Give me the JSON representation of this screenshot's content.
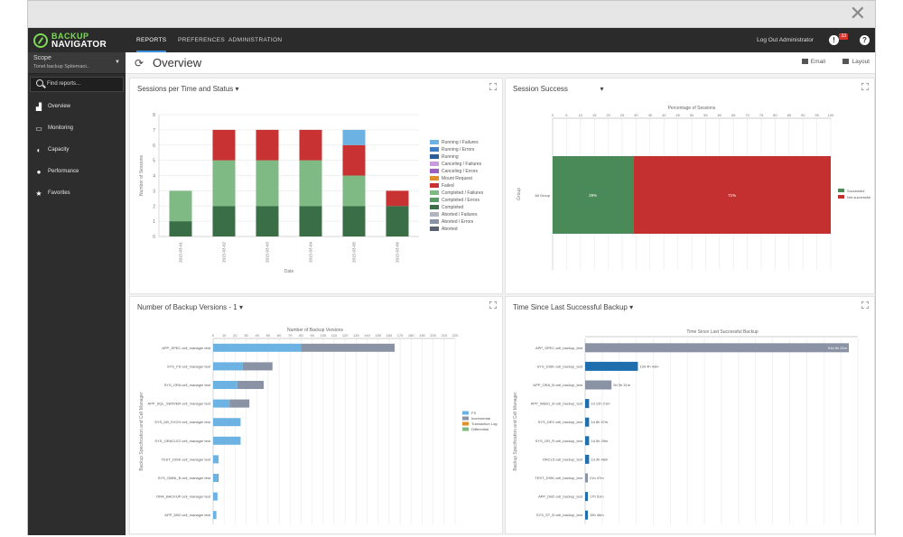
{
  "window": {
    "close_glyph": "✕"
  },
  "brand": {
    "line1": "BACKUP",
    "line2": "NAVIGATOR"
  },
  "nav": {
    "tabs": [
      {
        "label": "REPORTS",
        "active": true
      },
      {
        "label": "PREFERENCES",
        "active": false
      },
      {
        "label": "ADMINISTRATION",
        "active": false
      }
    ],
    "logout": "Log Out Administrator",
    "alert_badge": "33",
    "alert_glyph": "!",
    "help_glyph": "?"
  },
  "sidebar": {
    "scope_title": "Scope",
    "scope_value": "Tonet backup Spitemaoi..",
    "find_reports": "Find reports...",
    "items": [
      {
        "label": "Overview",
        "icon": "bar-chart-icon",
        "glyph": "▟"
      },
      {
        "label": "Monitoring",
        "icon": "monitor-icon",
        "glyph": "▭"
      },
      {
        "label": "Capacity",
        "icon": "pie-icon",
        "glyph": "◐"
      },
      {
        "label": "Performance",
        "icon": "info-icon",
        "glyph": "●"
      },
      {
        "label": "Favorites",
        "icon": "star-icon",
        "glyph": "★"
      }
    ]
  },
  "header": {
    "title": "Overview",
    "refresh_glyph": "⟳",
    "email": "Email",
    "layout": "Layout"
  },
  "colors": {
    "dark_green": "#3a6e46",
    "light_green": "#7fba85",
    "red": "#c83232",
    "light_blue": "#6cb3e3",
    "grey_bar": "#8a93a3",
    "blue_dark": "#1f6fae",
    "session_green": "#4a8a58",
    "session_red": "#c43030"
  },
  "chart_data": [
    {
      "type": "bar",
      "title": "Sessions per Time and Status",
      "xlabel": "Date",
      "ylabel": "Number of Sessions",
      "ylim": [
        0,
        8
      ],
      "yticks": [
        0,
        1,
        2,
        3,
        4,
        5,
        6,
        7,
        8
      ],
      "categories": [
        "2015-03-01",
        "2015-03-02",
        "2015-03-03",
        "2015-03-04",
        "2015-03-05",
        "2015-03-06"
      ],
      "series": [
        {
          "name": "Completed",
          "color": "#3a6e46",
          "values": [
            1,
            2,
            2,
            2,
            2,
            2
          ]
        },
        {
          "name": "Completed / Failures",
          "color": "#7fba85",
          "values": [
            2,
            3,
            3,
            3,
            2,
            0
          ]
        },
        {
          "name": "Failed",
          "color": "#c83232",
          "values": [
            0,
            2,
            2,
            2,
            2,
            1
          ]
        },
        {
          "name": "Running / Failures",
          "color": "#6cb3e3",
          "values": [
            0,
            0,
            0,
            0,
            1,
            0
          ]
        }
      ],
      "legend": [
        {
          "name": "Running / Failures",
          "color": "#6cb3e3"
        },
        {
          "name": "Running / Errors",
          "color": "#3d7fc2"
        },
        {
          "name": "Running",
          "color": "#2a5d9a"
        },
        {
          "name": "Canceling / Failures",
          "color": "#c89be0"
        },
        {
          "name": "Canceling / Errors",
          "color": "#9a5fc0"
        },
        {
          "name": "Mount Request",
          "color": "#e0902a"
        },
        {
          "name": "Failed",
          "color": "#c83232"
        },
        {
          "name": "Completed / Failures",
          "color": "#7fba85"
        },
        {
          "name": "Completed / Errors",
          "color": "#5a9a66"
        },
        {
          "name": "Completed",
          "color": "#3a6e46"
        },
        {
          "name": "Aborted / Failures",
          "color": "#b0b6c0"
        },
        {
          "name": "Aborted / Errors",
          "color": "#8a93a3"
        },
        {
          "name": "Aborted",
          "color": "#5c6370"
        }
      ],
      "legend_position": "right",
      "grid": true
    },
    {
      "type": "bar",
      "orientation": "horizontal-stacked",
      "title": "Session Success",
      "xlabel": "Percentage of Sessions",
      "ylabel": "Group",
      "xlim": [
        0,
        100
      ],
      "xticks": [
        0,
        5,
        10,
        15,
        20,
        25,
        30,
        35,
        40,
        45,
        50,
        55,
        60,
        65,
        70,
        75,
        80,
        85,
        90,
        95,
        100
      ],
      "categories": [
        "All Group"
      ],
      "series": [
        {
          "name": "Successful",
          "color": "#4a8a58",
          "values": [
            29
          ],
          "label": "29%"
        },
        {
          "name": "Not successful",
          "color": "#c43030",
          "values": [
            71
          ],
          "label": "71%"
        }
      ],
      "legend_position": "right",
      "grid": true
    },
    {
      "type": "bar",
      "orientation": "horizontal-stacked",
      "title": "Number of Backup Versions - 1",
      "xlabel": "Number of Backup Versions",
      "ylabel": "Backup Specification and Cell Manager",
      "xlim": [
        0,
        220
      ],
      "xticks": [
        0,
        10,
        20,
        30,
        40,
        50,
        60,
        70,
        80,
        90,
        100,
        110,
        120,
        130,
        140,
        150,
        160,
        170,
        180,
        190,
        200,
        210,
        220
      ],
      "categories": [
        "APP_SPEC cell_manager test",
        "SYS_FS cell_manager test",
        "SYS_ORA cell_manager test",
        "APP_SQL_SERVER cell_manager test",
        "SYS_DB_EXCH cell_manager test",
        "SYS_ORACLE2 cell_manager test",
        "TEST_DISK cell_manager test",
        "SYS_OMNI_B cell_manager test",
        "ORA_BACKUP cell_manager test",
        "APP_DB2 cell_manager test"
      ],
      "series": [
        {
          "name": "FS",
          "color": "#6cb3e3",
          "values": [
            80,
            27,
            22,
            15,
            25,
            25,
            5,
            4,
            4,
            3
          ]
        },
        {
          "name": "Incremental",
          "color": "#8a93a3",
          "values": [
            85,
            27,
            24,
            18,
            0,
            0,
            0,
            1,
            0,
            0
          ]
        },
        {
          "name": "Transaction Log",
          "color": "#e0902a",
          "values": [
            0,
            0,
            0,
            0,
            0,
            0,
            0,
            0,
            0,
            0
          ]
        },
        {
          "name": "Differential",
          "color": "#7fba85",
          "values": [
            0,
            0,
            0,
            0,
            0,
            0,
            0,
            0,
            0,
            0
          ]
        }
      ],
      "legend_position": "right",
      "grid": true
    },
    {
      "type": "bar",
      "orientation": "horizontal",
      "title": "Time Since Last Successful Backup",
      "xlabel": "Time Since Last Successful Backup",
      "ylabel": "Backup Specification and Cell Manager",
      "categories": [
        "APP_SPEC cell_backup_test",
        "SYS_DISK cell_backup_test",
        "APP_ORA_B cell_backup_test",
        "APP_WEB1_B cell_backup_test",
        "SYS_DEV cell_backup_test",
        "SYS_OR_R cell_backup_test",
        "ORCL5 cell_backup_test",
        "TEST_DISK cell_backup_test",
        "APP_DB2 cell_backup_test",
        "SYS_ST_B cell_backup_test"
      ],
      "values": [
        100,
        20,
        10,
        1.5,
        1.5,
        1.5,
        1.5,
        1,
        1,
        1
      ],
      "colors": [
        "#8a93a3",
        "#1f6fae",
        "#8a93a3",
        "#1f6fae",
        "#1f6fae",
        "#1f6fae",
        "#1f6fae",
        "#8a93a3",
        "#1f6fae",
        "#1f6fae"
      ],
      "labels": [
        "91d 8h 22m",
        "19d 4h 43m",
        "9d 3h 31m",
        "1d 12h 21m",
        "1d 8h 57m",
        "1d 5h 29m",
        "1d 3h 48m",
        "21h 47m",
        "17h 51m",
        "15h 46m"
      ],
      "grid": true
    }
  ]
}
